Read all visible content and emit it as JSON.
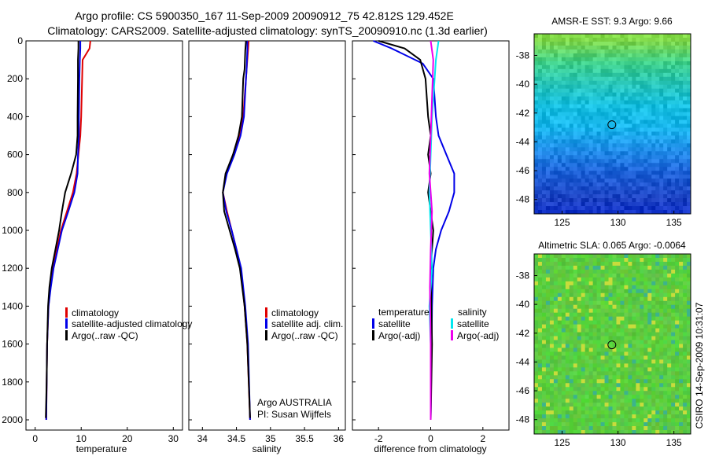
{
  "header": {
    "line1": "Argo profile: CS 5900350_167 11-Sep-2009 20090912_75 42.812S 129.452E",
    "line2": "Climatology: CARS2009. Satellite-adjusted climatology: synTS_20090910.nc (1.3d earlier)"
  },
  "side_label": "CSIRO 14-Sep-2009 10:31:07",
  "colors": {
    "climatology": "#e00000",
    "satellite": "#0000e8",
    "argo": "#000000",
    "salinity_satellite": "#00e8f0",
    "salinity_argo": "#ee00ee"
  },
  "chart_data": [
    {
      "type": "line",
      "panel": "temperature",
      "xlabel": "temperature",
      "ylabel": "",
      "xlim": [
        -2,
        32
      ],
      "ylim": [
        2050,
        0
      ],
      "x_ticks": [
        0,
        10,
        20,
        30
      ],
      "y_ticks": [
        0,
        200,
        400,
        600,
        800,
        1000,
        1200,
        1400,
        1600,
        1800,
        2000
      ],
      "legend": {
        "entries": [
          "climatology",
          "satellite-adjusted climatology",
          "Argo(..raw -QC)"
        ]
      },
      "series": [
        {
          "name": "climatology",
          "color_key": "climatology",
          "x": [
            12.0,
            11.8,
            10.3,
            10.2,
            10.0,
            9.8,
            9.4,
            9.0,
            8.2,
            6.9,
            5.6,
            4.7,
            3.9,
            3.3,
            2.9,
            2.6,
            2.5,
            2.4
          ],
          "y": [
            0,
            40,
            100,
            200,
            400,
            500,
            600,
            700,
            800,
            900,
            1000,
            1100,
            1200,
            1300,
            1400,
            1600,
            1800,
            2000
          ]
        },
        {
          "name": "satellite-adjusted climatology",
          "color_key": "satellite",
          "x": [
            9.8,
            9.8,
            9.7,
            9.6,
            9.5,
            9.5,
            9.3,
            9.2,
            8.5,
            7.2,
            5.8,
            4.9,
            4.0,
            3.4,
            2.9,
            2.6,
            2.5,
            2.4
          ],
          "y": [
            0,
            40,
            100,
            200,
            400,
            500,
            600,
            700,
            800,
            900,
            1000,
            1100,
            1200,
            1300,
            1400,
            1600,
            1800,
            2000
          ]
        },
        {
          "name": "Argo(..raw -QC)",
          "color_key": "argo",
          "x": [
            9.4,
            9.4,
            9.3,
            9.3,
            9.2,
            9.2,
            8.9,
            7.8,
            6.5,
            5.8,
            5.2,
            4.4,
            3.6,
            3.1,
            2.8,
            2.6,
            2.5,
            2.3
          ],
          "y": [
            0,
            40,
            100,
            200,
            400,
            500,
            600,
            700,
            800,
            900,
            1000,
            1100,
            1200,
            1300,
            1400,
            1600,
            1800,
            1990
          ]
        }
      ]
    },
    {
      "type": "line",
      "panel": "salinity",
      "xlabel": "salinity",
      "ylabel": "",
      "xlim": [
        33.8,
        36.1
      ],
      "ylim": [
        2050,
        0
      ],
      "x_ticks": [
        34,
        34.5,
        35,
        35.5,
        36
      ],
      "legend": {
        "entries": [
          "climatology",
          "satellite adj. clim.",
          "Argo(..raw -QC)"
        ]
      },
      "annotations": [
        "Argo AUSTRALIA",
        "PI: Susan Wijffels"
      ],
      "series": [
        {
          "name": "climatology",
          "color_key": "climatology",
          "x": [
            34.68,
            34.67,
            34.65,
            34.64,
            34.6,
            34.55,
            34.45,
            34.35,
            34.3,
            34.36,
            34.43,
            34.5,
            34.56,
            34.62,
            34.66,
            34.7
          ],
          "y": [
            0,
            50,
            150,
            200,
            400,
            500,
            600,
            700,
            800,
            900,
            1000,
            1100,
            1200,
            1400,
            1600,
            2000
          ]
        },
        {
          "name": "satellite adj. clim.",
          "color_key": "satellite",
          "x": [
            34.66,
            34.66,
            34.65,
            34.64,
            34.61,
            34.56,
            34.47,
            34.36,
            34.3,
            34.35,
            34.43,
            34.5,
            34.57,
            34.63,
            34.67,
            34.7
          ],
          "y": [
            0,
            50,
            150,
            200,
            400,
            500,
            600,
            700,
            800,
            900,
            1000,
            1100,
            1200,
            1400,
            1600,
            2000
          ]
        },
        {
          "name": "Argo(..raw -QC)",
          "color_key": "argo",
          "x": [
            34.64,
            34.63,
            34.62,
            34.6,
            34.58,
            34.53,
            34.45,
            34.34,
            34.3,
            34.32,
            34.4,
            34.48,
            34.55,
            34.62,
            34.66,
            34.7
          ],
          "y": [
            0,
            50,
            150,
            200,
            400,
            500,
            600,
            700,
            800,
            900,
            1000,
            1100,
            1200,
            1400,
            1600,
            1990
          ]
        }
      ]
    },
    {
      "type": "line",
      "panel": "difference",
      "xlabel": "difference from climatology",
      "ylabel": "",
      "xlim": [
        -3.0,
        3.0
      ],
      "ylim": [
        2050,
        0
      ],
      "x_ticks": [
        -2,
        0,
        2
      ],
      "legend": {
        "headers": [
          "temperature",
          "salinity"
        ],
        "entries": [
          "satellite",
          "Argo(-adj)",
          "satellite",
          "Argo(-adj)"
        ]
      },
      "series": [
        {
          "name": "satellite",
          "color_key": "satellite",
          "x": [
            -2.2,
            -1.5,
            -0.3,
            0.1,
            0.2,
            0.3,
            0.6,
            0.9,
            0.9,
            0.7,
            0.4,
            0.2,
            0.1,
            0.05,
            0.0
          ],
          "y": [
            0,
            40,
            120,
            200,
            400,
            500,
            600,
            700,
            800,
            900,
            1000,
            1100,
            1200,
            1400,
            2000
          ]
        },
        {
          "name": "Argo(-adj)",
          "color_key": "argo",
          "x": [
            -2.0,
            -1.0,
            -0.4,
            -0.2,
            -0.1,
            0.0,
            -0.1,
            0.0,
            -0.1,
            0.0,
            0.1,
            0.0,
            0.05,
            0.0
          ],
          "y": [
            0,
            40,
            100,
            200,
            400,
            500,
            600,
            700,
            800,
            900,
            1000,
            1200,
            1600,
            2000
          ]
        },
        {
          "name": "satellite",
          "color_key": "salinity_satellite",
          "x": [
            0.3,
            0.2,
            0.15,
            0.05,
            0.0,
            -0.05,
            0.0,
            0.05,
            -0.05,
            0.0,
            0.0,
            0.0
          ],
          "y": [
            0,
            100,
            200,
            400,
            600,
            800,
            1000,
            1200,
            1400,
            1600,
            1800,
            2000
          ]
        },
        {
          "name": "Argo(-adj)",
          "color_key": "salinity_argo",
          "x": [
            0.0,
            0.1,
            0.05,
            0.0,
            -0.05,
            0.05,
            0.0,
            -0.03,
            0.0,
            0.0
          ],
          "y": [
            0,
            100,
            300,
            500,
            700,
            900,
            1100,
            1300,
            1600,
            2000
          ]
        }
      ]
    },
    {
      "type": "heatmap",
      "panel": "sst_map",
      "title": "AMSR-E SST: 9.3 Argo: 9.66",
      "xlim": [
        122.5,
        136.5
      ],
      "ylim": [
        -49,
        -36.5
      ],
      "x_ticks": [
        125,
        130,
        135
      ],
      "y_ticks": [
        -38,
        -40,
        -42,
        -44,
        -46,
        -48
      ],
      "marker": {
        "lon": 129.45,
        "lat": -42.81
      },
      "color_by_lat": [
        {
          "lat": -37,
          "color": "#7fd64a"
        },
        {
          "lat": -38.5,
          "color": "#3fd08a"
        },
        {
          "lat": -40,
          "color": "#27c4b8"
        },
        {
          "lat": -41.5,
          "color": "#16bfe0"
        },
        {
          "lat": -43,
          "color": "#18b6ec"
        },
        {
          "lat": -44.5,
          "color": "#1f8ee8"
        },
        {
          "lat": -46,
          "color": "#1d63d8"
        },
        {
          "lat": -48,
          "color": "#1a3fc0"
        }
      ]
    },
    {
      "type": "heatmap",
      "panel": "sla_map",
      "title": "Altimetric SLA: 0.065 Argo: -0.0064",
      "xlim": [
        122.5,
        136.5
      ],
      "ylim": [
        -49,
        -36.5
      ],
      "x_ticks": [
        125,
        130,
        135
      ],
      "y_ticks": [
        -38,
        -40,
        -42,
        -44,
        -46,
        -48
      ],
      "marker": {
        "lon": 129.45,
        "lat": -42.81
      },
      "base_color": "#5ccc40"
    }
  ]
}
